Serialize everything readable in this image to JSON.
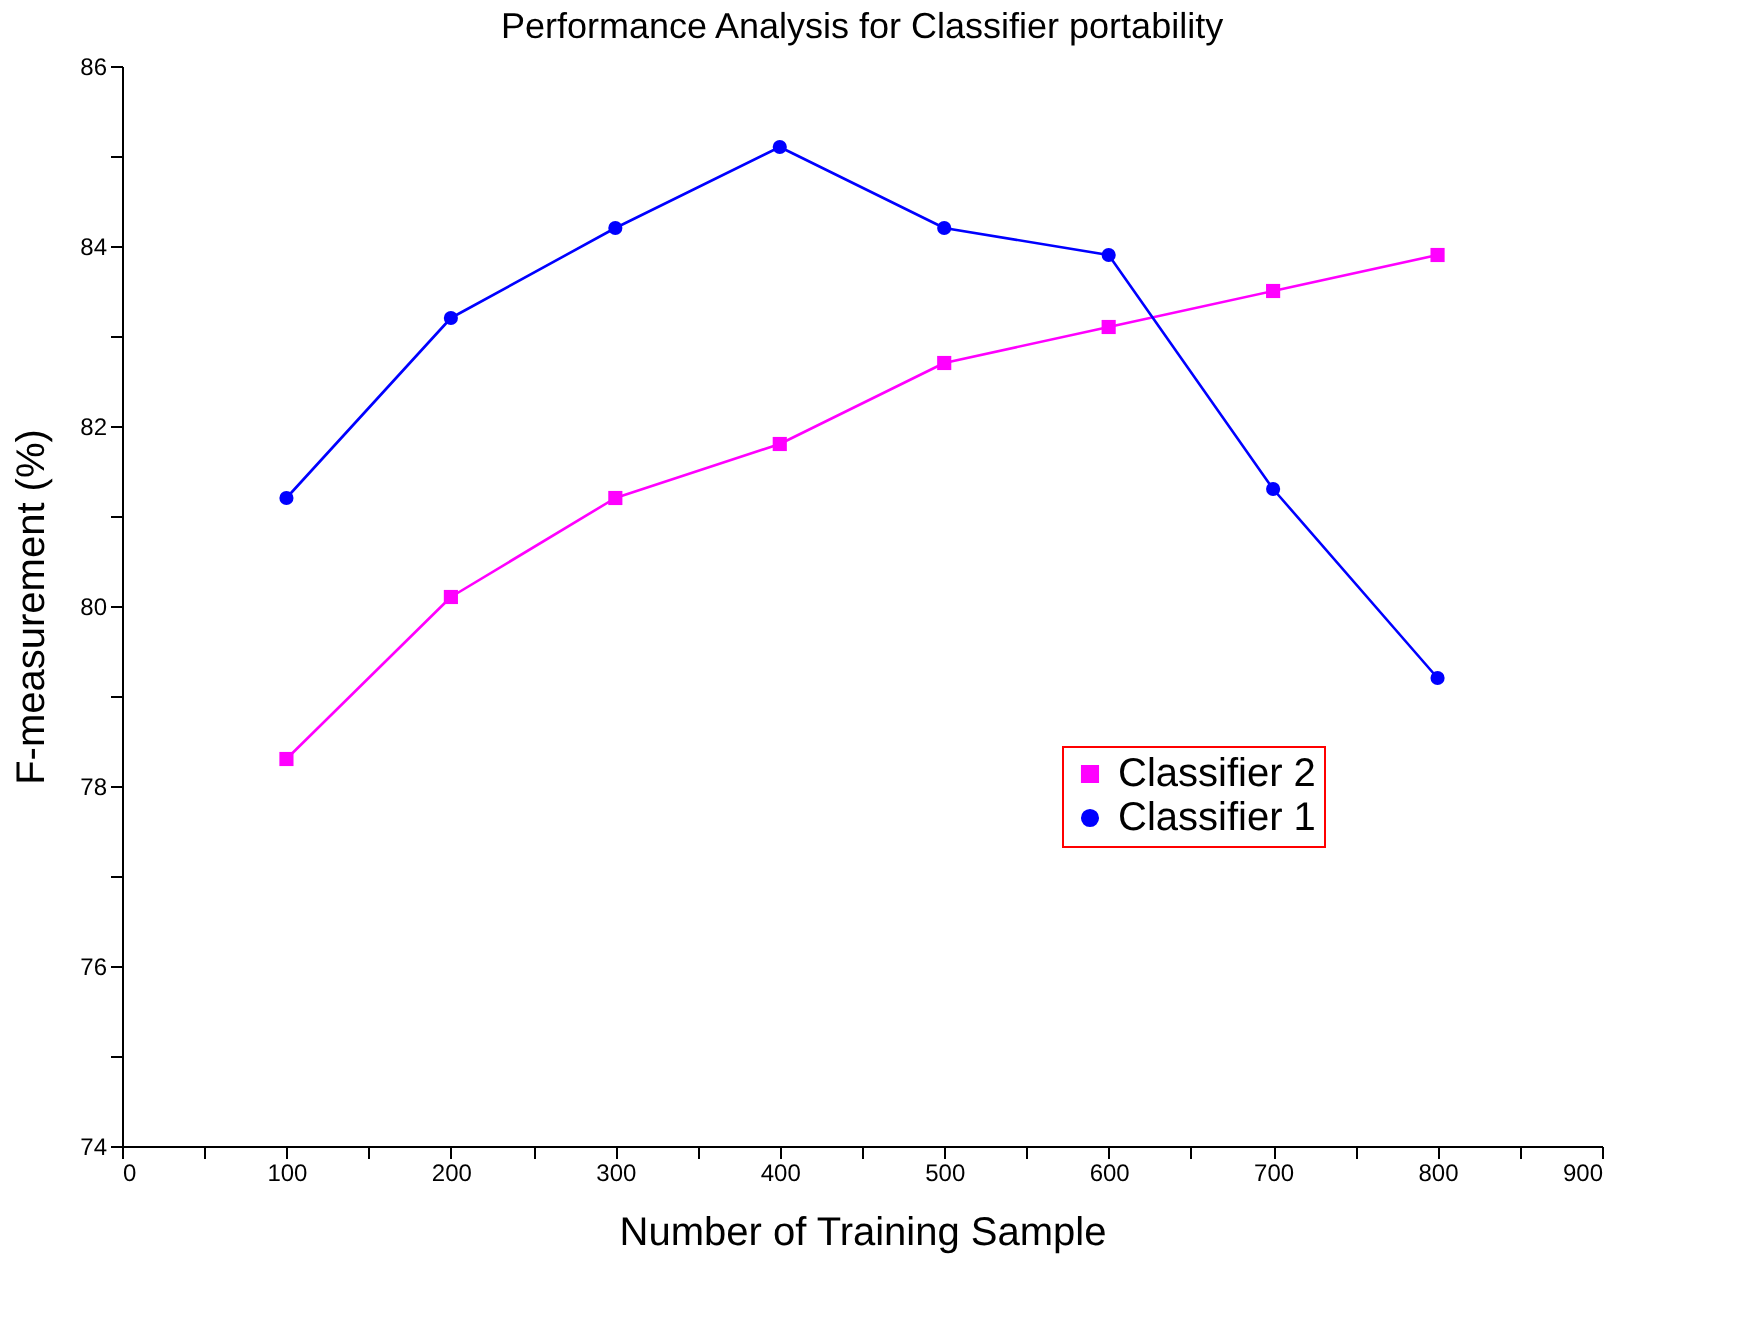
{
  "chart_data": {
    "type": "line",
    "title": "Performance Analysis for Classifier portability",
    "xlabel": "Number of Training Sample",
    "ylabel": "F-measurement (%)",
    "x": [
      100,
      200,
      300,
      400,
      500,
      600,
      700,
      800
    ],
    "series": [
      {
        "name": "Classifier 2",
        "color": "#ff00ff",
        "marker": "square",
        "values": [
          78.3,
          80.1,
          81.2,
          81.8,
          82.7,
          83.1,
          83.5,
          83.9
        ]
      },
      {
        "name": "Classifier 1",
        "color": "#0000ff",
        "marker": "circle",
        "values": [
          81.2,
          83.2,
          84.2,
          85.1,
          84.2,
          83.9,
          81.3,
          79.2
        ]
      }
    ],
    "xlim": [
      0,
      900
    ],
    "ylim": [
      74,
      86
    ],
    "xticks": [
      0,
      {
        "value": 50,
        "label": null
      },
      100,
      {
        "value": 150,
        "label": null
      },
      200,
      {
        "value": 250,
        "label": null
      },
      300,
      {
        "value": 350,
        "label": null
      },
      400,
      {
        "value": 450,
        "label": null
      },
      500,
      {
        "value": 550,
        "label": null
      },
      600,
      {
        "value": 650,
        "label": null
      },
      700,
      {
        "value": 750,
        "label": null
      },
      800,
      {
        "value": 850,
        "label": null
      },
      900
    ],
    "yticks": [
      74,
      {
        "value": 75,
        "label": null
      },
      76,
      {
        "value": 77,
        "label": null
      },
      78,
      {
        "value": 79,
        "label": null
      },
      80,
      {
        "value": 81,
        "label": null
      },
      82,
      {
        "value": 83,
        "label": null
      },
      84,
      {
        "value": 85,
        "label": null
      },
      86
    ],
    "grid": false,
    "legend": "bottom right",
    "line_style": "solid"
  }
}
